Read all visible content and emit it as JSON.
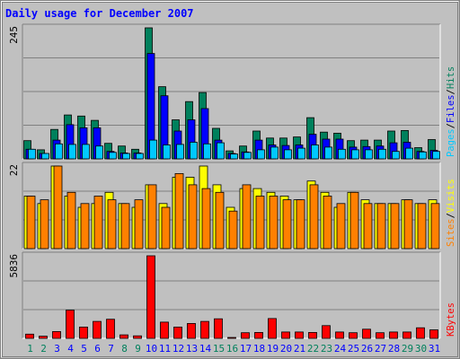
{
  "title": "Daily usage for December 2007",
  "colors": {
    "hits": "#00805c",
    "files": "#0000ff",
    "pages": "#00c8ff",
    "visits": "#ffff00",
    "sites": "#ff8000",
    "kbytes": "#ff0000",
    "title": "#0000ff",
    "weekend_day": "#00805c",
    "weekday": "#0000ff",
    "plot_bg": "#c0c0c0",
    "gridline": "#808080"
  },
  "chart_data": [
    {
      "type": "bar",
      "panel": "hits-files-pages",
      "ylim": [
        0,
        245
      ],
      "ytick_label": "245",
      "legend": [
        {
          "name": "Pages",
          "key": "pages"
        },
        {
          "name": "Files",
          "key": "files"
        },
        {
          "name": "Hits",
          "key": "hits"
        }
      ],
      "categories": [
        "1",
        "2",
        "3",
        "4",
        "5",
        "6",
        "7",
        "8",
        "9",
        "10",
        "11",
        "12",
        "13",
        "14",
        "15",
        "16",
        "17",
        "18",
        "19",
        "20",
        "21",
        "22",
        "23",
        "24",
        "25",
        "26",
        "27",
        "28",
        "29",
        "30",
        "31"
      ],
      "series": [
        {
          "key": "hits",
          "values": [
            34,
            17,
            55,
            82,
            80,
            72,
            29,
            24,
            18,
            245,
            135,
            73,
            107,
            124,
            57,
            15,
            24,
            52,
            39,
            39,
            41,
            77,
            50,
            48,
            34,
            35,
            35,
            52,
            53,
            21,
            36
          ]
        },
        {
          "key": "files",
          "values": [
            18,
            10,
            35,
            64,
            58,
            58,
            14,
            11,
            11,
            197,
            118,
            52,
            73,
            94,
            35,
            10,
            13,
            35,
            26,
            25,
            26,
            46,
            37,
            37,
            22,
            23,
            24,
            30,
            31,
            14,
            16
          ]
        },
        {
          "key": "pages",
          "values": [
            18,
            10,
            28,
            27,
            27,
            24,
            12,
            10,
            10,
            35,
            26,
            27,
            31,
            28,
            30,
            9,
            12,
            17,
            22,
            17,
            20,
            26,
            22,
            18,
            17,
            17,
            18,
            14,
            20,
            13,
            14
          ]
        }
      ]
    },
    {
      "type": "bar",
      "panel": "visits-sites",
      "ylim": [
        0,
        22
      ],
      "ytick_label": "22",
      "legend": [
        {
          "name": "Sites",
          "key": "sites"
        },
        {
          "name": "Visits",
          "key": "visits"
        }
      ],
      "categories": [
        "1",
        "2",
        "3",
        "4",
        "5",
        "6",
        "7",
        "8",
        "9",
        "10",
        "11",
        "12",
        "13",
        "14",
        "15",
        "16",
        "17",
        "18",
        "19",
        "20",
        "21",
        "22",
        "23",
        "24",
        "25",
        "26",
        "27",
        "28",
        "29",
        "30",
        "31"
      ],
      "series": [
        {
          "key": "visits",
          "values": [
            14,
            12,
            22,
            14,
            11,
            12,
            15,
            12,
            11,
            17,
            12,
            19,
            19,
            22,
            17,
            11,
            16,
            16,
            15,
            14,
            13,
            18,
            15,
            11,
            15,
            13,
            12,
            12,
            13,
            12,
            13
          ]
        },
        {
          "key": "sites",
          "values": [
            14,
            13,
            22,
            15,
            12,
            14,
            13,
            12,
            13,
            17,
            11,
            20,
            17,
            16,
            15,
            10,
            17,
            14,
            14,
            13,
            13,
            17,
            14,
            12,
            15,
            12,
            12,
            12,
            13,
            12,
            12
          ]
        }
      ]
    },
    {
      "type": "bar",
      "panel": "kbytes",
      "ylim": [
        0,
        5836
      ],
      "ytick_label": "5836",
      "legend": [
        {
          "name": "KBytes",
          "key": "kbytes"
        }
      ],
      "categories": [
        "1",
        "2",
        "3",
        "4",
        "5",
        "6",
        "7",
        "8",
        "9",
        "10",
        "11",
        "12",
        "13",
        "14",
        "15",
        "16",
        "17",
        "18",
        "19",
        "20",
        "21",
        "22",
        "23",
        "24",
        "25",
        "26",
        "27",
        "28",
        "29",
        "30",
        "31"
      ],
      "series": [
        {
          "key": "kbytes",
          "values": [
            300,
            150,
            480,
            2000,
            800,
            1200,
            1350,
            250,
            180,
            5836,
            1150,
            800,
            1050,
            1200,
            1380,
            50,
            400,
            420,
            1400,
            450,
            450,
            420,
            900,
            450,
            400,
            650,
            400,
            450,
            450,
            750,
            600
          ]
        }
      ],
      "weekend_days": [
        "1",
        "2",
        "8",
        "9",
        "15",
        "16",
        "22",
        "23",
        "29",
        "30"
      ]
    }
  ]
}
